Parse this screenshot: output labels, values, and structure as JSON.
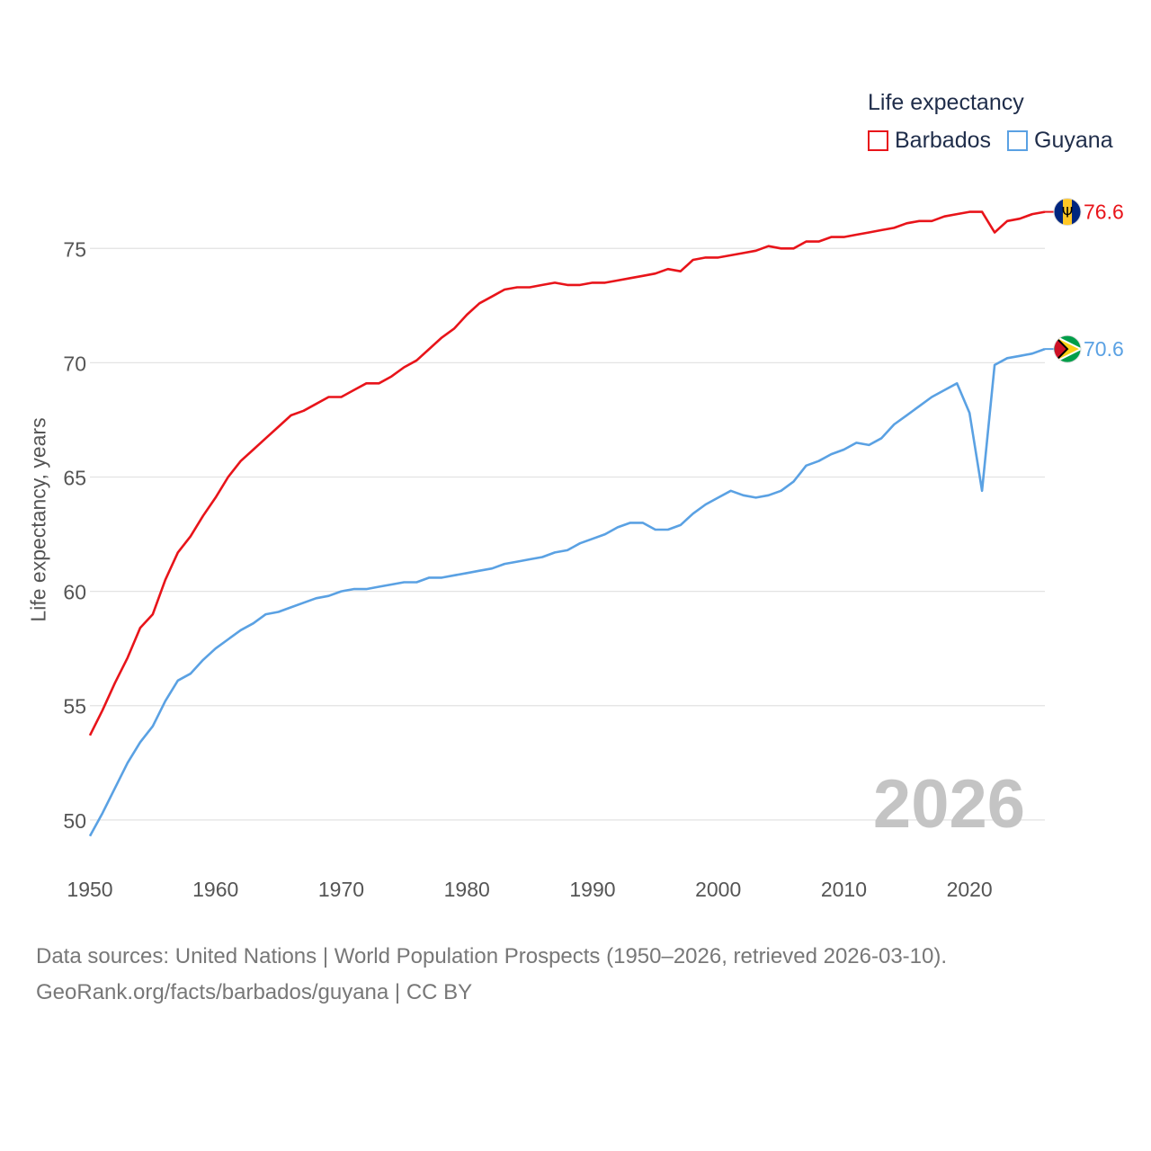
{
  "chart_data": {
    "type": "line",
    "title": "",
    "legend_title": "Life expectancy",
    "ylabel": "Life expectancy, years",
    "xlabel": "",
    "xlim": [
      1950,
      2026
    ],
    "ylim": [
      48.5,
      78
    ],
    "yticks": [
      50,
      55,
      60,
      65,
      70,
      75
    ],
    "xticks": [
      1950,
      1960,
      1970,
      1980,
      1990,
      2000,
      2010,
      2020
    ],
    "year_watermark": "2026",
    "series": [
      {
        "name": "Barbados",
        "color": "#e8141a",
        "end_label": "76.6",
        "flag_icon": "barbados-flag-icon",
        "x": [
          1950,
          1951,
          1952,
          1953,
          1954,
          1955,
          1956,
          1957,
          1958,
          1959,
          1960,
          1961,
          1962,
          1963,
          1964,
          1965,
          1966,
          1967,
          1968,
          1969,
          1970,
          1971,
          1972,
          1973,
          1974,
          1975,
          1976,
          1977,
          1978,
          1979,
          1980,
          1981,
          1982,
          1983,
          1984,
          1985,
          1986,
          1987,
          1988,
          1989,
          1990,
          1991,
          1992,
          1993,
          1994,
          1995,
          1996,
          1997,
          1998,
          1999,
          2000,
          2001,
          2002,
          2003,
          2004,
          2005,
          2006,
          2007,
          2008,
          2009,
          2010,
          2011,
          2012,
          2013,
          2014,
          2015,
          2016,
          2017,
          2018,
          2019,
          2020,
          2021,
          2022,
          2023,
          2024,
          2025,
          2026
        ],
        "values": [
          53.7,
          54.8,
          56.0,
          57.1,
          58.4,
          59.0,
          60.5,
          61.7,
          62.4,
          63.3,
          64.1,
          65.0,
          65.7,
          66.2,
          66.7,
          67.2,
          67.7,
          67.9,
          68.2,
          68.5,
          68.5,
          68.8,
          69.1,
          69.1,
          69.4,
          69.8,
          70.1,
          70.6,
          71.1,
          71.5,
          72.1,
          72.6,
          72.9,
          73.2,
          73.3,
          73.3,
          73.4,
          73.5,
          73.4,
          73.4,
          73.5,
          73.5,
          73.6,
          73.7,
          73.8,
          73.9,
          74.1,
          74.0,
          74.5,
          74.6,
          74.6,
          74.7,
          74.8,
          74.9,
          75.1,
          75.0,
          75.0,
          75.3,
          75.3,
          75.5,
          75.5,
          75.6,
          75.7,
          75.8,
          75.9,
          76.1,
          76.2,
          76.2,
          76.4,
          76.5,
          76.6,
          76.6,
          75.7,
          76.2,
          76.3,
          76.5,
          76.6
        ]
      },
      {
        "name": "Guyana",
        "color": "#5aa1e3",
        "end_label": "70.6",
        "flag_icon": "guyana-flag-icon",
        "x": [
          1950,
          1951,
          1952,
          1953,
          1954,
          1955,
          1956,
          1957,
          1958,
          1959,
          1960,
          1961,
          1962,
          1963,
          1964,
          1965,
          1966,
          1967,
          1968,
          1969,
          1970,
          1971,
          1972,
          1973,
          1974,
          1975,
          1976,
          1977,
          1978,
          1979,
          1980,
          1981,
          1982,
          1983,
          1984,
          1985,
          1986,
          1987,
          1988,
          1989,
          1990,
          1991,
          1992,
          1993,
          1994,
          1995,
          1996,
          1997,
          1998,
          1999,
          2000,
          2001,
          2002,
          2003,
          2004,
          2005,
          2006,
          2007,
          2008,
          2009,
          2010,
          2011,
          2012,
          2013,
          2014,
          2015,
          2016,
          2017,
          2018,
          2019,
          2020,
          2021,
          2022,
          2023,
          2024,
          2025,
          2026
        ],
        "values": [
          49.3,
          50.3,
          51.4,
          52.5,
          53.4,
          54.1,
          55.2,
          56.1,
          56.4,
          57.0,
          57.5,
          57.9,
          58.3,
          58.6,
          59.0,
          59.1,
          59.3,
          59.5,
          59.7,
          59.8,
          60.0,
          60.1,
          60.1,
          60.2,
          60.3,
          60.4,
          60.4,
          60.6,
          60.6,
          60.7,
          60.8,
          60.9,
          61.0,
          61.2,
          61.3,
          61.4,
          61.5,
          61.7,
          61.8,
          62.1,
          62.3,
          62.5,
          62.8,
          63.0,
          63.0,
          62.7,
          62.7,
          62.9,
          63.4,
          63.8,
          64.1,
          64.4,
          64.2,
          64.1,
          64.2,
          64.4,
          64.8,
          65.5,
          65.7,
          66.0,
          66.2,
          66.5,
          66.4,
          66.7,
          67.3,
          67.7,
          68.1,
          68.5,
          68.8,
          69.1,
          67.8,
          64.4,
          69.9,
          70.2,
          70.3,
          70.4,
          70.6
        ]
      }
    ]
  },
  "footer": {
    "line1": "Data sources: United Nations | World Population Prospects (1950–2026, retrieved 2026-03-10).",
    "line2": "GeoRank.org/facts/barbados/guyana | CC BY"
  }
}
